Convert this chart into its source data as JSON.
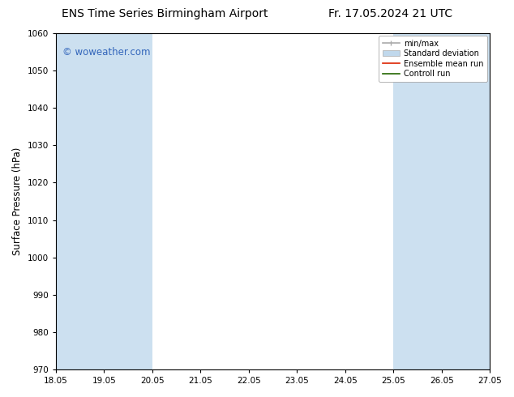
{
  "title_left": "ENS Time Series Birmingham Airport",
  "title_right": "Fr. 17.05.2024 21 UTC",
  "ylabel": "Surface Pressure (hPa)",
  "ylim": [
    970,
    1060
  ],
  "yticks": [
    970,
    980,
    990,
    1000,
    1010,
    1020,
    1030,
    1040,
    1050,
    1060
  ],
  "xlim_start": 18.05,
  "xlim_end": 27.05,
  "xticks": [
    18.05,
    19.05,
    20.05,
    21.05,
    22.05,
    23.05,
    24.05,
    25.05,
    26.05,
    27.05
  ],
  "xtick_labels": [
    "18.05",
    "19.05",
    "20.05",
    "21.05",
    "22.05",
    "23.05",
    "24.05",
    "25.05",
    "26.05",
    "27.05"
  ],
  "watermark": "© woweather.com",
  "watermark_color": "#3366bb",
  "bg_color": "#ffffff",
  "plot_bg_color": "#ffffff",
  "shaded_band_color": "#cce0f0",
  "shaded_bands": [
    {
      "x_start": 18.05,
      "x_end": 19.05
    },
    {
      "x_start": 19.05,
      "x_end": 20.05
    },
    {
      "x_start": 25.05,
      "x_end": 26.05
    },
    {
      "x_start": 26.05,
      "x_end": 27.05
    }
  ],
  "legend_entries": [
    {
      "label": "min/max",
      "color": "#aaaaaa",
      "lw": 1.2,
      "style": "minmax"
    },
    {
      "label": "Standard deviation",
      "color": "#c0d8ec",
      "lw": 5,
      "style": "band"
    },
    {
      "label": "Ensemble mean run",
      "color": "#dd2200",
      "lw": 1.2,
      "style": "line"
    },
    {
      "label": "Controll run",
      "color": "#226600",
      "lw": 1.2,
      "style": "line"
    }
  ],
  "title_fontsize": 10,
  "tick_fontsize": 7.5,
  "label_fontsize": 8.5,
  "legend_fontsize": 7
}
